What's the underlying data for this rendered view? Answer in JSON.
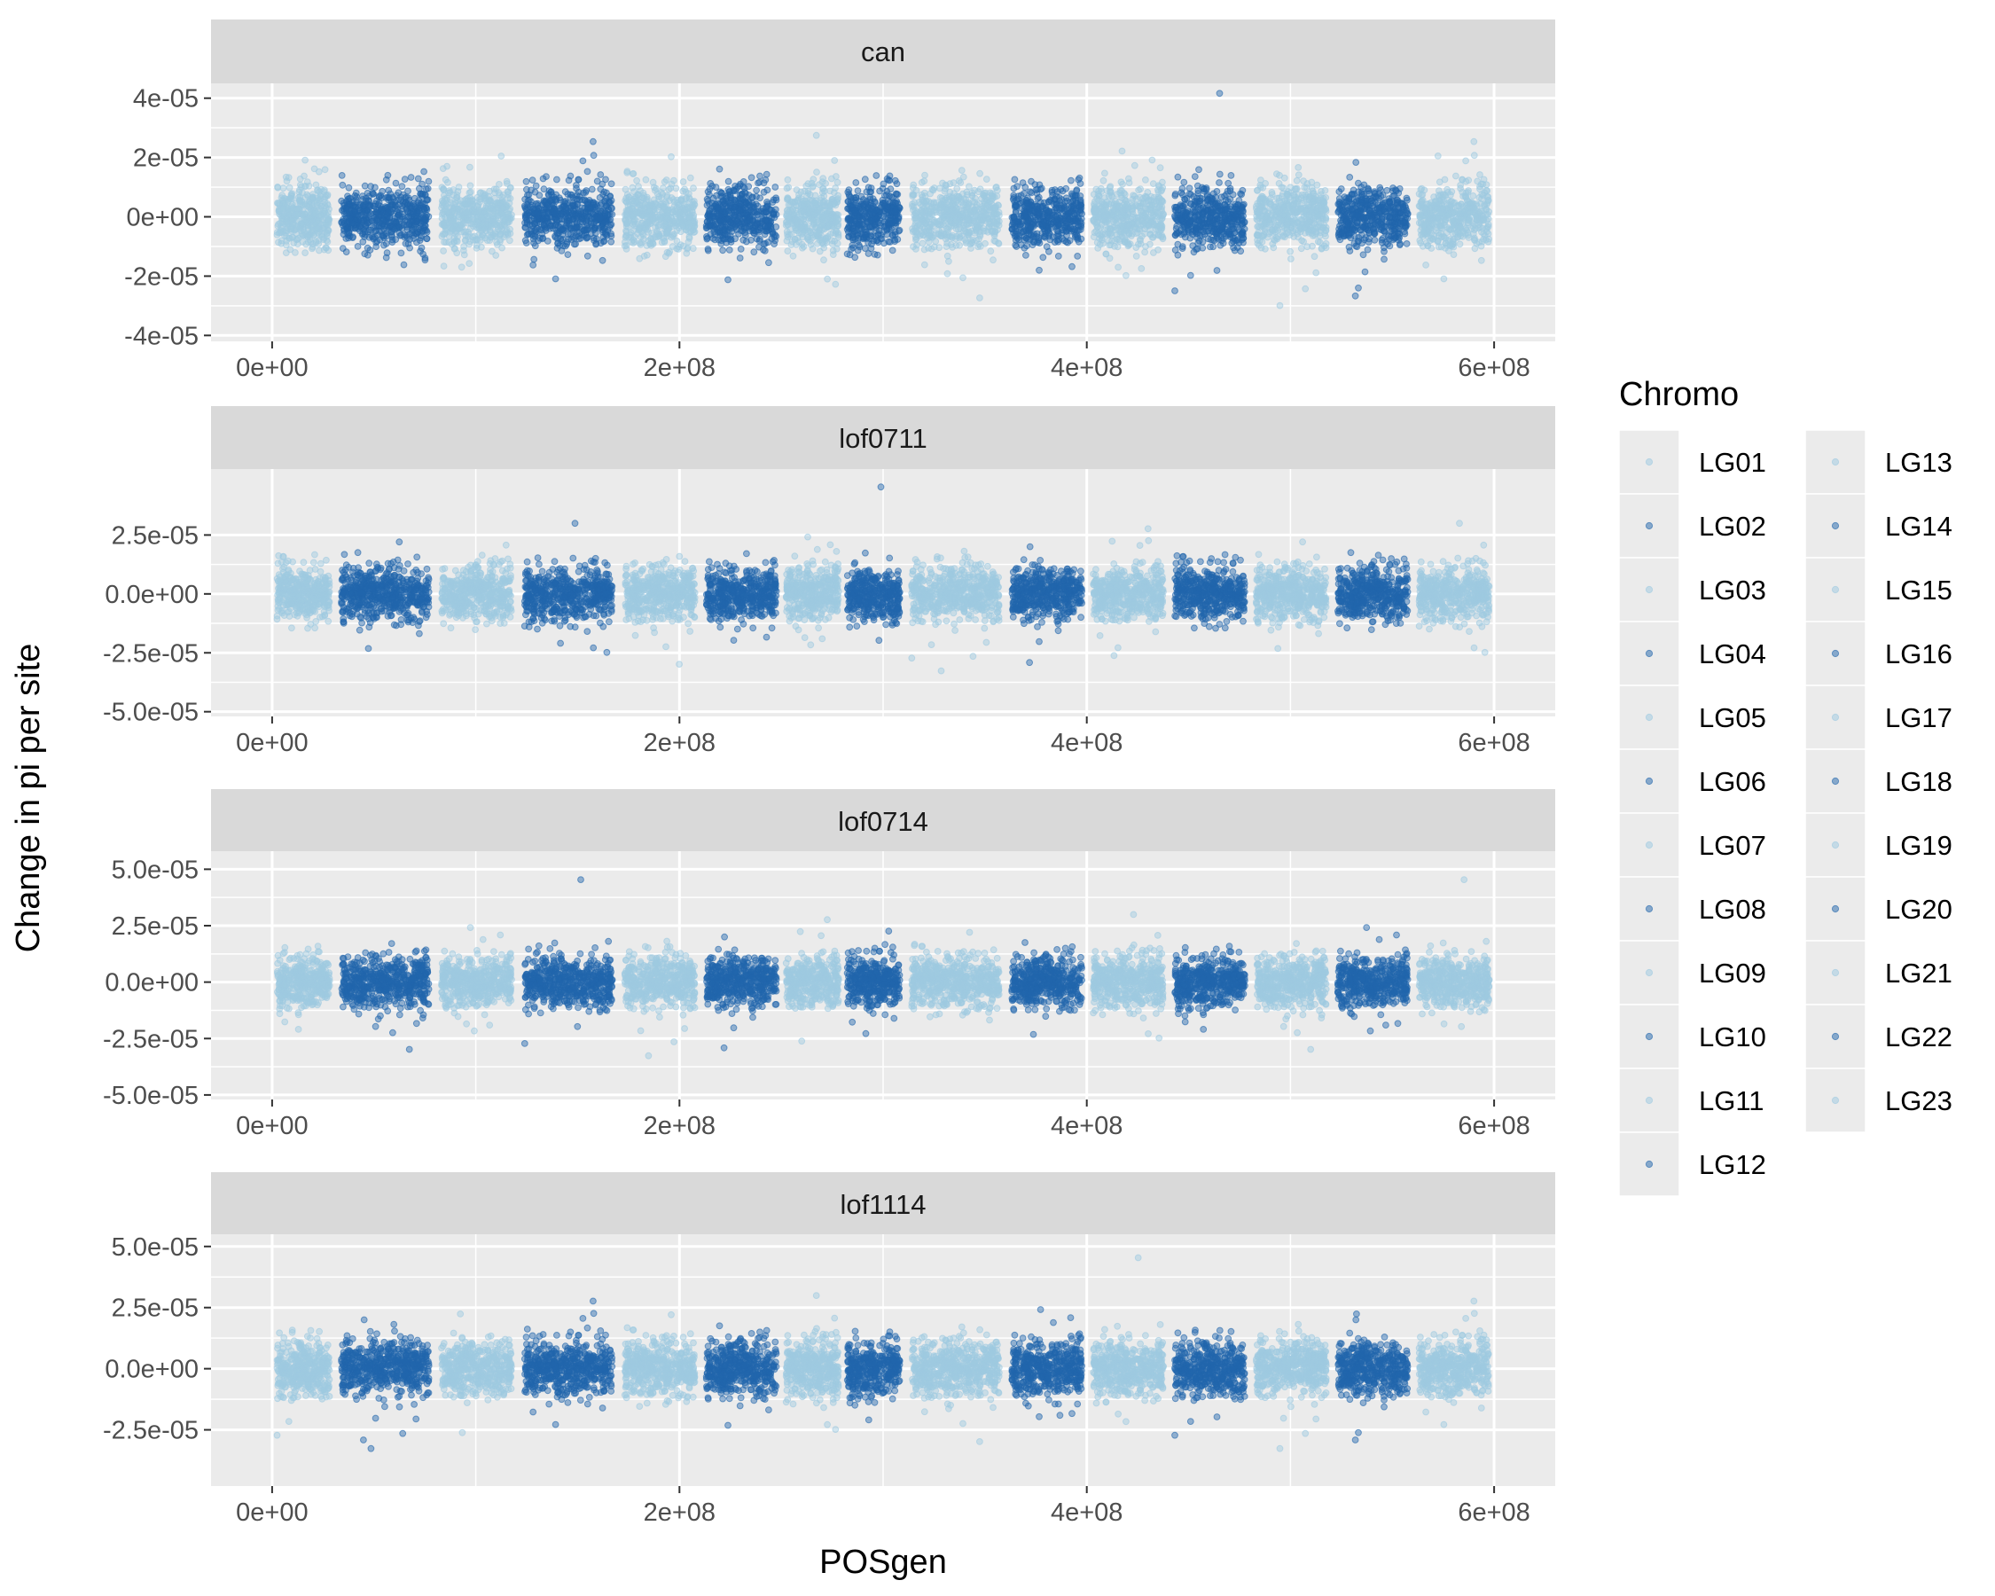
{
  "chart_data": {
    "type": "scatter",
    "xlabel": "POSgen",
    "ylabel": "Change in pi per site",
    "x_ticks": [
      {
        "value": 0,
        "label": "0e+00"
      },
      {
        "value": 200000000,
        "label": "2e+08"
      },
      {
        "value": 400000000,
        "label": "4e+08"
      },
      {
        "value": 600000000,
        "label": "6e+08"
      }
    ],
    "xlim": [
      -30000000,
      630000000
    ],
    "colors": {
      "light": "#9ecae1",
      "dark": "#2166ac",
      "panel_bg": "#ebebeb",
      "strip_bg": "#d9d9d9",
      "grid": "#ffffff"
    },
    "legend": {
      "title": "Chromo",
      "position": "right",
      "columns": 2,
      "entries": [
        {
          "label": "LG01",
          "shade": "light"
        },
        {
          "label": "LG02",
          "shade": "dark"
        },
        {
          "label": "LG03",
          "shade": "light"
        },
        {
          "label": "LG04",
          "shade": "dark"
        },
        {
          "label": "LG05",
          "shade": "light"
        },
        {
          "label": "LG06",
          "shade": "dark"
        },
        {
          "label": "LG07",
          "shade": "light"
        },
        {
          "label": "LG08",
          "shade": "dark"
        },
        {
          "label": "LG09",
          "shade": "light"
        },
        {
          "label": "LG10",
          "shade": "dark"
        },
        {
          "label": "LG11",
          "shade": "light"
        },
        {
          "label": "LG12",
          "shade": "dark"
        },
        {
          "label": "LG13",
          "shade": "light"
        },
        {
          "label": "LG14",
          "shade": "dark"
        },
        {
          "label": "LG15",
          "shade": "light"
        },
        {
          "label": "LG16",
          "shade": "dark"
        },
        {
          "label": "LG17",
          "shade": "light"
        },
        {
          "label": "LG18",
          "shade": "dark"
        },
        {
          "label": "LG19",
          "shade": "light"
        },
        {
          "label": "LG20",
          "shade": "dark"
        },
        {
          "label": "LG21",
          "shade": "light"
        },
        {
          "label": "LG22",
          "shade": "dark"
        },
        {
          "label": "LG23",
          "shade": "light"
        }
      ]
    },
    "chromosome_blocks": [
      {
        "start": 0,
        "end": 30000000,
        "shade": "light"
      },
      {
        "start": 30000000,
        "end": 80000000,
        "shade": "dark"
      },
      {
        "start": 80000000,
        "end": 120000000,
        "shade": "light"
      },
      {
        "start": 120000000,
        "end": 170000000,
        "shade": "dark"
      },
      {
        "start": 170000000,
        "end": 210000000,
        "shade": "light"
      },
      {
        "start": 210000000,
        "end": 250000000,
        "shade": "dark"
      },
      {
        "start": 250000000,
        "end": 280000000,
        "shade": "light"
      },
      {
        "start": 280000000,
        "end": 310000000,
        "shade": "dark"
      },
      {
        "start": 310000000,
        "end": 360000000,
        "shade": "light"
      },
      {
        "start": 360000000,
        "end": 400000000,
        "shade": "dark"
      },
      {
        "start": 400000000,
        "end": 440000000,
        "shade": "light"
      },
      {
        "start": 440000000,
        "end": 480000000,
        "shade": "dark"
      },
      {
        "start": 480000000,
        "end": 520000000,
        "shade": "light"
      },
      {
        "start": 520000000,
        "end": 560000000,
        "shade": "dark"
      },
      {
        "start": 560000000,
        "end": 600000000,
        "shade": "light"
      }
    ],
    "panels": [
      {
        "strip": "can",
        "ylim": [
          -4.2e-05,
          4.5e-05
        ],
        "y_ticks": [
          {
            "value": 4e-05,
            "label": "4e-05"
          },
          {
            "value": 2e-05,
            "label": "2e-05"
          },
          {
            "value": 0,
            "label": "0e+00"
          },
          {
            "value": -2e-05,
            "label": "-2e-05"
          },
          {
            "value": -4e-05,
            "label": "-4e-05"
          }
        ],
        "spread": 1.1e-05
      },
      {
        "strip": "lof0711",
        "ylim": [
          -5.2e-05,
          5.3e-05
        ],
        "y_ticks": [
          {
            "value": 2.5e-05,
            "label": "2.5e-05"
          },
          {
            "value": 0,
            "label": "0.0e+00"
          },
          {
            "value": -2.5e-05,
            "label": "-2.5e-05"
          },
          {
            "value": -5e-05,
            "label": "-5.0e-05"
          }
        ],
        "spread": 1.2e-05
      },
      {
        "strip": "lof0714",
        "ylim": [
          -5.2e-05,
          5.8e-05
        ],
        "y_ticks": [
          {
            "value": 5e-05,
            "label": "5.0e-05"
          },
          {
            "value": 2.5e-05,
            "label": "2.5e-05"
          },
          {
            "value": 0,
            "label": "0.0e+00"
          },
          {
            "value": -2.5e-05,
            "label": "-2.5e-05"
          },
          {
            "value": -5e-05,
            "label": "-5.0e-05"
          }
        ],
        "spread": 1.2e-05
      },
      {
        "strip": "lof1114",
        "ylim": [
          -4.8e-05,
          5.5e-05
        ],
        "y_ticks": [
          {
            "value": 5e-05,
            "label": "5.0e-05"
          },
          {
            "value": 2.5e-05,
            "label": "2.5e-05"
          },
          {
            "value": 0,
            "label": "0.0e+00"
          },
          {
            "value": -2.5e-05,
            "label": "-2.5e-05"
          }
        ],
        "spread": 1.2e-05
      }
    ]
  }
}
